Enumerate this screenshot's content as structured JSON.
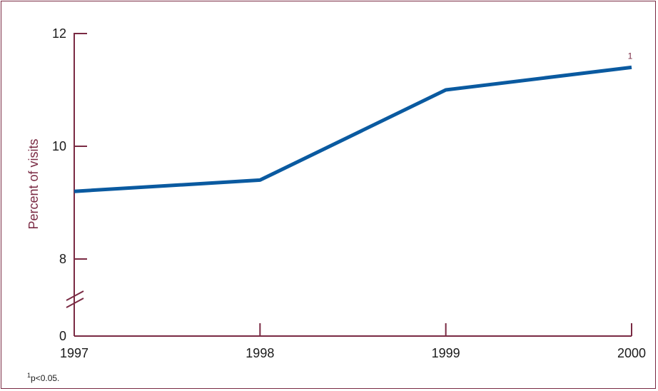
{
  "chart_data": {
    "type": "line",
    "x": [
      "1997",
      "1998",
      "1999",
      "2000"
    ],
    "series": [
      {
        "values": [
          9.2,
          9.4,
          11.0,
          11.4
        ]
      }
    ],
    "ylabel": "Percent of visits",
    "xlabel": "",
    "yticks": [
      "0",
      "8",
      "10",
      "12"
    ],
    "ylim": [
      8,
      12
    ],
    "y_axis_break": true,
    "annotations": [
      {
        "x": "2000",
        "text": "1"
      }
    ],
    "grid": false
  },
  "footnote": {
    "marker": "1",
    "text": "p<0.05."
  },
  "colors": {
    "axis": "#7a2a43",
    "line": "#0a5aa0"
  }
}
